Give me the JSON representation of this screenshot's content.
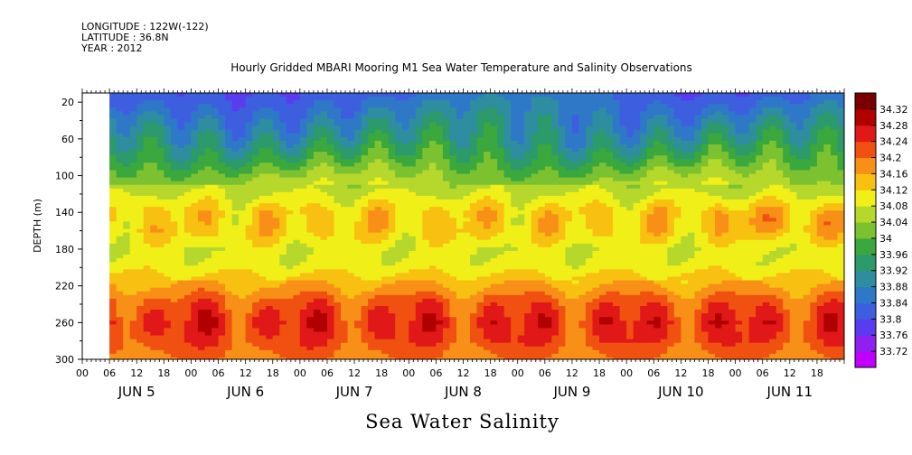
{
  "header": {
    "longitude": "LONGITUDE : 122W(-122)",
    "latitude": "LATITUDE : 36.8N",
    "year": "YEAR : 2012"
  },
  "chart_data": {
    "type": "heatmap",
    "title": "Hourly Gridded MBARI Mooring M1 Sea Water Temperature and Salinity Observations",
    "variable_title": "Sea Water Salinity",
    "ylabel": "DEPTH (m)",
    "ylim": [
      300,
      10
    ],
    "y_axis_inverted": true,
    "y_ticks": [
      20,
      60,
      100,
      140,
      180,
      220,
      260,
      300
    ],
    "x_range_hours": [
      0,
      168
    ],
    "x_hour_labels": [
      "00",
      "06",
      "12",
      "18",
      "00",
      "06",
      "12",
      "18",
      "00",
      "06",
      "12",
      "18",
      "00",
      "06",
      "12",
      "18",
      "00",
      "06",
      "12",
      "18",
      "00",
      "06",
      "12",
      "18",
      "00",
      "06",
      "12",
      "18"
    ],
    "x_day_labels": [
      "JUN 5",
      "JUN 6",
      "JUN 7",
      "JUN 8",
      "JUN 9",
      "JUN 10",
      "JUN 11"
    ],
    "data_start_hour": 6,
    "colorbar": {
      "levels": [
        33.72,
        33.76,
        33.8,
        33.84,
        33.88,
        33.92,
        33.96,
        34,
        34.04,
        34.08,
        34.12,
        34.16,
        34.2,
        34.24,
        34.28,
        34.32
      ],
      "tick_labels": [
        "33.72",
        "33.76",
        "33.8",
        "33.84",
        "33.88",
        "33.92",
        "33.96",
        "34",
        "34.04",
        "34.08",
        "34.12",
        "34.16",
        "34.2",
        "34.24",
        "34.28",
        "34.32"
      ],
      "colors": [
        "#c000ff",
        "#9020f0",
        "#5a3cf0",
        "#3e5ee0",
        "#2f78c8",
        "#2e8ea0",
        "#2c9a6a",
        "#3aa83c",
        "#7cc230",
        "#b6d82c",
        "#f0f018",
        "#f8c010",
        "#f89018",
        "#f05010",
        "#e01818",
        "#b00000",
        "#780000"
      ]
    },
    "depth_profile": [
      {
        "depth": 10,
        "salinity": 33.84
      },
      {
        "depth": 20,
        "salinity": 33.86
      },
      {
        "depth": 40,
        "salinity": 33.89
      },
      {
        "depth": 60,
        "salinity": 33.92
      },
      {
        "depth": 80,
        "salinity": 33.97
      },
      {
        "depth": 100,
        "salinity": 34.03
      },
      {
        "depth": 120,
        "salinity": 34.08
      },
      {
        "depth": 140,
        "salinity": 34.13
      },
      {
        "depth": 160,
        "salinity": 34.13
      },
      {
        "depth": 180,
        "salinity": 34.09
      },
      {
        "depth": 200,
        "salinity": 34.1
      },
      {
        "depth": 220,
        "salinity": 34.16
      },
      {
        "depth": 240,
        "salinity": 34.22
      },
      {
        "depth": 260,
        "salinity": 34.25
      },
      {
        "depth": 280,
        "salinity": 34.23
      },
      {
        "depth": 300,
        "salinity": 34.19
      }
    ],
    "grid": false
  }
}
